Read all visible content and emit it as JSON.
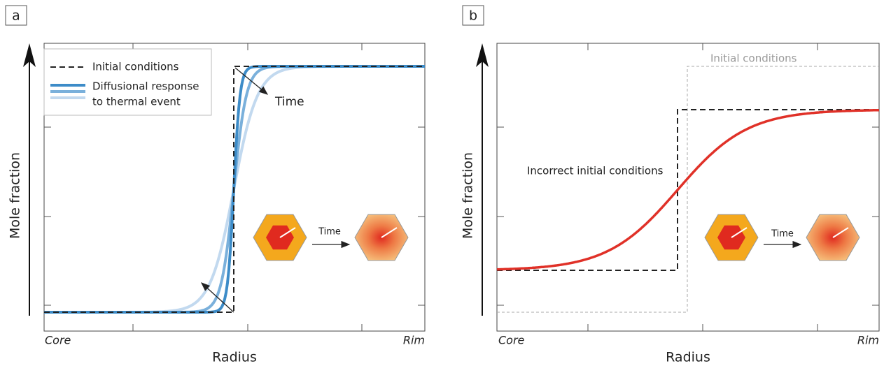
{
  "panels": [
    {
      "label": "a",
      "y_label": "Mole fraction",
      "x_label": "Radius",
      "x_start": "Core",
      "x_end": "Rim",
      "legend": {
        "dashed": "Initial conditions",
        "solid": [
          "Diffusional response",
          "to thermal event"
        ]
      },
      "annotation": "Time",
      "inset_label": "Time"
    },
    {
      "label": "b",
      "y_label": "Mole fraction",
      "x_label": "Radius",
      "x_start": "Core",
      "x_end": "Rim",
      "annotations": [
        "Initial conditions",
        "Incorrect initial conditions"
      ],
      "inset_label": "Time"
    }
  ]
}
